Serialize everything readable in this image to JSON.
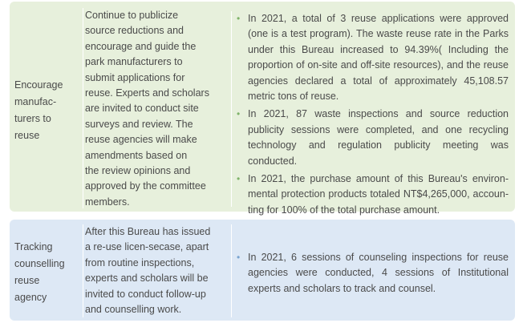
{
  "rows": [
    {
      "label": "Encourage manufac-turers to reuse",
      "label_lines": [
        "Encourage",
        "manufac-",
        "turers to",
        "reuse"
      ],
      "description_lines": [
        "Continue to publicize",
        "source reductions and",
        "encourage and guide the",
        "park manufacturers to",
        "submit applications for",
        "reuse. Experts and scholars",
        "are invited to conduct site",
        "surveys and review. The",
        "reuse agencies will make",
        "amendments based on",
        "the review opinions and",
        "approved by the committee",
        "members."
      ],
      "results": [
        "In 2021, a total of 3 reuse applications were approved (one is a test program). The waste reuse rate in the Parks under this Bureau increased to 94.39%( Including the proportion of on-site and off-site resources), and the reuse agencies declared a total of approximately 45,108.57 metric tons of reuse.",
        "In 2021, 87 waste inspections and source reduction publicity sessions were completed, and one recycling technology and regulation publicity meeting was conducted.",
        "In 2021, the purchase amount of this Bureau's environ-mental protection products totaled NT$4,265,000, accoun-ting for 100% of the total purchase amount."
      ]
    },
    {
      "label_lines": [
        "Tracking",
        "counselling",
        "reuse",
        "agency"
      ],
      "description_lines": [
        "After this Bureau has issued",
        "a re-use licen-secase, apart",
        "from routine inspections,",
        "experts and scholars will be",
        "invited to conduct follow-up",
        "and counselling work."
      ],
      "results": [
        "In 2021, 6 sessions of counseling inspections for reuse agencies were conducted, 4 sessions of Institutional experts and scholars to track and counsel."
      ]
    }
  ],
  "colors": {
    "green_row": "#e7f0dc",
    "blue_row": "#dde8f5",
    "green_bullet": "#7fb36a",
    "blue_bullet": "#7aa4cf"
  }
}
